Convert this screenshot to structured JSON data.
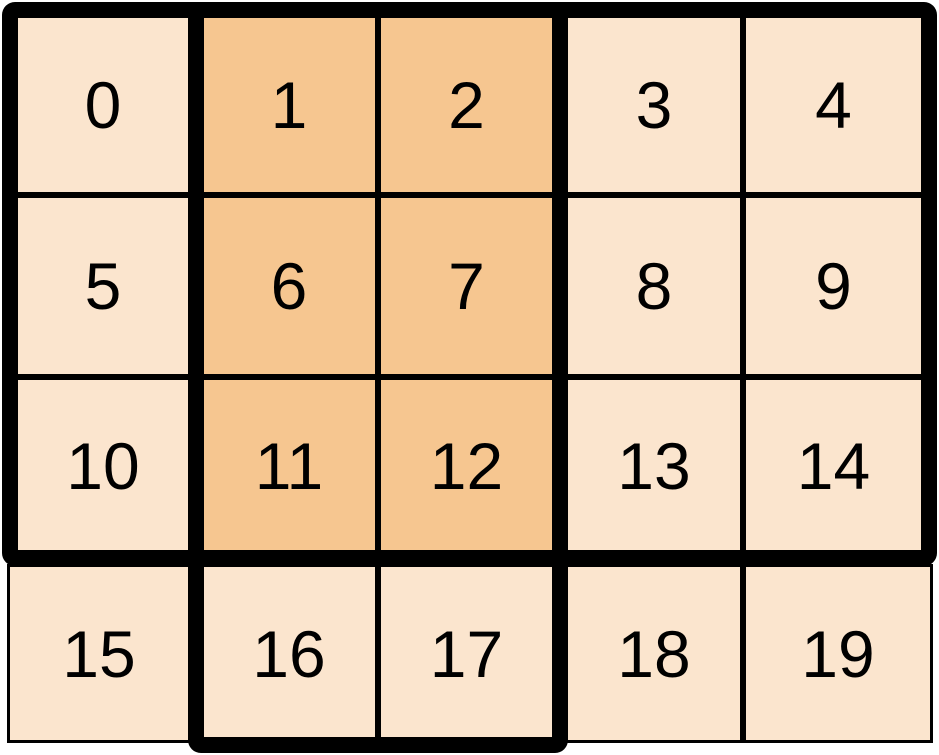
{
  "diagram": {
    "title": "numbered-grid-with-highlighted-window",
    "rows": 4,
    "cols": 5,
    "outer_block_cells": "0-14",
    "window_block_cells": [
      1,
      2,
      6,
      7,
      11,
      12,
      16,
      17
    ]
  },
  "colors": {
    "background": "#FFFFFF",
    "cell_light": "#FBE5CE",
    "cell_highlight": "#F6C690",
    "line": "#000000",
    "text": "#000000"
  },
  "cells": [
    {
      "label": "0",
      "highlighted": false
    },
    {
      "label": "1",
      "highlighted": true
    },
    {
      "label": "2",
      "highlighted": true
    },
    {
      "label": "3",
      "highlighted": false
    },
    {
      "label": "4",
      "highlighted": false
    },
    {
      "label": "5",
      "highlighted": false
    },
    {
      "label": "6",
      "highlighted": true
    },
    {
      "label": "7",
      "highlighted": true
    },
    {
      "label": "8",
      "highlighted": false
    },
    {
      "label": "9",
      "highlighted": false
    },
    {
      "label": "10",
      "highlighted": false
    },
    {
      "label": "11",
      "highlighted": true
    },
    {
      "label": "12",
      "highlighted": true
    },
    {
      "label": "13",
      "highlighted": false
    },
    {
      "label": "14",
      "highlighted": false
    },
    {
      "label": "15",
      "highlighted": false
    },
    {
      "label": "16",
      "highlighted": false
    },
    {
      "label": "17",
      "highlighted": false
    },
    {
      "label": "18",
      "highlighted": false
    },
    {
      "label": "19",
      "highlighted": false
    }
  ]
}
